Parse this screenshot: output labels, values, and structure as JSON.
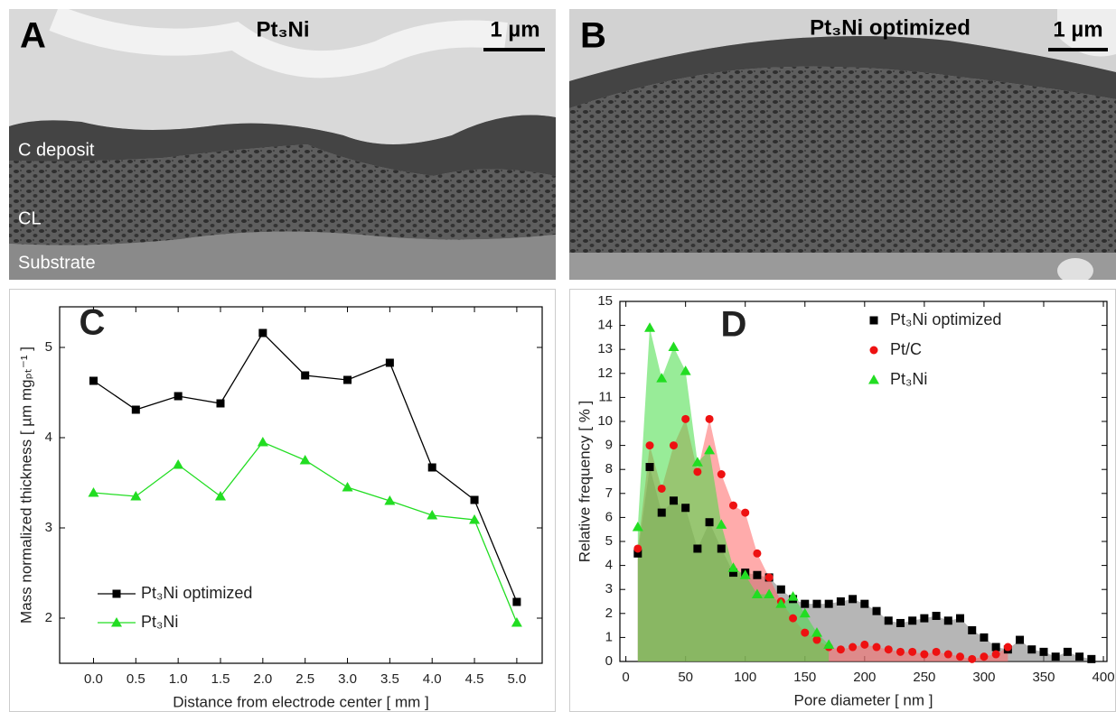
{
  "panels": [
    {
      "letter": "A",
      "title": "Pt₃Ni",
      "scale": "1 µm",
      "layers": [
        "C deposit",
        "CL",
        "Substrate"
      ]
    },
    {
      "letter": "B",
      "title": "Pt₃Ni optimized",
      "scale": "1 µm"
    }
  ],
  "chart_data": [
    {
      "type": "line",
      "panel_label": "C",
      "x_label": "Distance from electrode center [ mm ]",
      "y_label": "Mass normalized thickness [ µm mgₚₜ⁻¹ ]",
      "x": [
        0,
        0.5,
        1,
        1.5,
        2,
        2.5,
        3,
        3.5,
        4,
        4.5,
        5
      ],
      "xlim": [
        -0.4,
        5.3
      ],
      "xticks": [
        {
          "value": 0,
          "label": "0.0"
        },
        0.5,
        {
          "value": 1,
          "label": "1.0"
        },
        1.5,
        {
          "value": 2,
          "label": "2.0"
        },
        2.5,
        {
          "value": 3,
          "label": "3.0"
        },
        3.5,
        {
          "value": 4,
          "label": "4.0"
        },
        4.5,
        {
          "value": 5,
          "label": "5.0"
        }
      ],
      "ylim": [
        1.5,
        5.45
      ],
      "yticks": [
        2,
        3,
        4,
        5
      ],
      "legend": "bottom-left",
      "series": [
        {
          "name": "Pt₃Ni optimized",
          "color": "#000000",
          "marker": "square",
          "values": [
            4.63,
            4.31,
            4.46,
            4.38,
            5.16,
            4.69,
            4.64,
            4.83,
            3.67,
            3.31,
            2.18
          ]
        },
        {
          "name": "Pt₃Ni",
          "color": "#22dd22",
          "marker": "triangle",
          "values": [
            3.39,
            3.35,
            3.7,
            3.35,
            3.95,
            3.75,
            3.45,
            3.3,
            3.14,
            3.09,
            1.95
          ]
        }
      ]
    },
    {
      "type": "area-scatter",
      "panel_label": "D",
      "x_label": "Pore diameter [ nm ]",
      "y_label": "Relative frequency [ % ]",
      "xlim": [
        -5,
        403
      ],
      "xticks": [
        0,
        50,
        100,
        150,
        200,
        250,
        300,
        350,
        400
      ],
      "ylim": [
        0,
        15
      ],
      "yticks": [
        0,
        1,
        2,
        3,
        4,
        5,
        6,
        7,
        8,
        9,
        10,
        11,
        12,
        13,
        14,
        15
      ],
      "legend": "top-right",
      "series": [
        {
          "name": "Pt₃Ni optimized",
          "color": "#000000",
          "fill": "#7a7a7a",
          "marker": "square",
          "x": [
            10,
            20,
            30,
            40,
            50,
            60,
            70,
            80,
            90,
            100,
            110,
            120,
            130,
            140,
            150,
            160,
            170,
            180,
            190,
            200,
            210,
            220,
            230,
            240,
            250,
            260,
            270,
            280,
            290,
            300,
            310,
            320,
            330,
            340,
            350,
            360,
            370,
            380,
            390
          ],
          "values": [
            4.5,
            8.1,
            6.2,
            6.7,
            6.4,
            4.7,
            5.8,
            4.7,
            3.7,
            3.7,
            3.6,
            3.5,
            3.0,
            2.6,
            2.4,
            2.4,
            2.4,
            2.5,
            2.6,
            2.4,
            2.1,
            1.7,
            1.6,
            1.7,
            1.8,
            1.9,
            1.7,
            1.8,
            1.3,
            1.0,
            0.6,
            0.5,
            0.9,
            0.5,
            0.4,
            0.2,
            0.4,
            0.2,
            0.1
          ]
        },
        {
          "name": "Pt/C",
          "color": "#ee1111",
          "fill": "#ff6666",
          "marker": "circle",
          "x": [
            10,
            20,
            30,
            40,
            50,
            60,
            70,
            80,
            90,
            100,
            110,
            120,
            130,
            140,
            150,
            160,
            170,
            180,
            190,
            200,
            210,
            220,
            230,
            240,
            250,
            260,
            270,
            280,
            290,
            300,
            310,
            320
          ],
          "values": [
            4.7,
            9.0,
            7.2,
            9.0,
            10.1,
            7.9,
            10.1,
            7.8,
            6.5,
            6.2,
            4.5,
            3.5,
            2.5,
            1.8,
            1.2,
            0.9,
            0.6,
            0.5,
            0.6,
            0.7,
            0.6,
            0.5,
            0.4,
            0.4,
            0.3,
            0.4,
            0.3,
            0.2,
            0.1,
            0.2,
            0.3,
            0.6
          ]
        },
        {
          "name": "Pt₃Ni",
          "color": "#22dd22",
          "fill": "#44dd44",
          "marker": "triangle",
          "x": [
            10,
            20,
            30,
            40,
            50,
            60,
            70,
            80,
            90,
            100,
            110,
            120,
            130,
            140,
            150,
            160,
            170
          ],
          "values": [
            5.6,
            13.9,
            11.8,
            13.1,
            12.1,
            8.3,
            8.8,
            5.7,
            3.9,
            3.6,
            2.8,
            2.8,
            2.4,
            2.7,
            2.0,
            1.2,
            0.7
          ]
        }
      ]
    }
  ]
}
